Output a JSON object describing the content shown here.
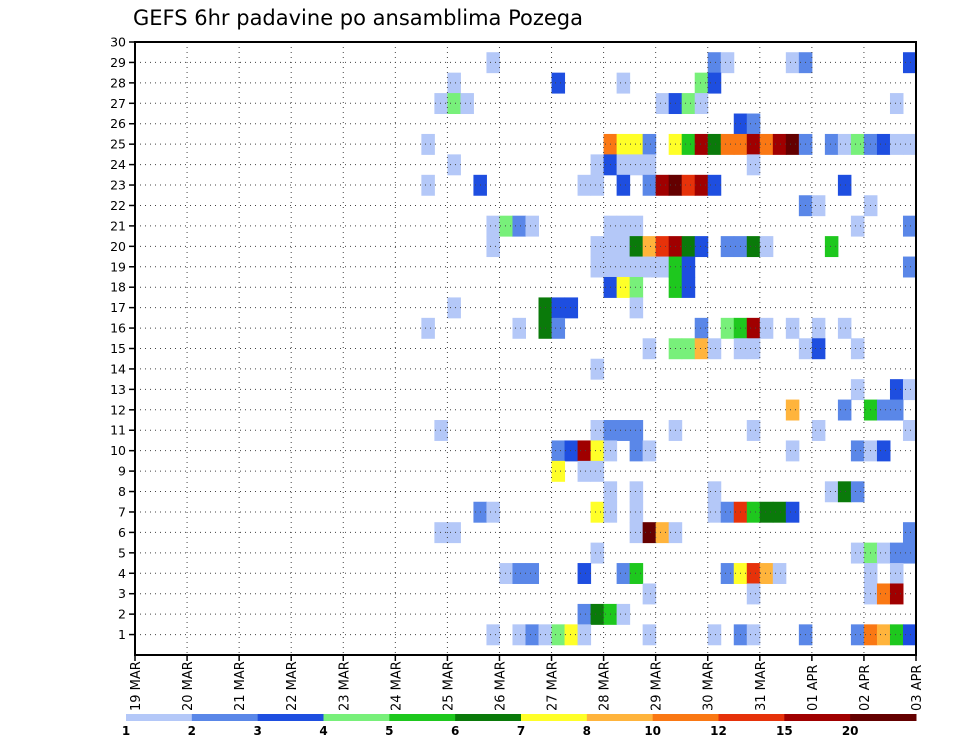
{
  "chart_data": {
    "type": "heatmap",
    "title": "GEFS 6hr padavine po ansamblima Pozega",
    "xlabel": "",
    "ylabel": "",
    "x_tick_labels": [
      "19 MAR",
      "20 MAR",
      "21 MAR",
      "22 MAR",
      "23 MAR",
      "24 MAR",
      "25 MAR",
      "26 MAR",
      "27 MAR",
      "28 MAR",
      "29 MAR",
      "30 MAR",
      "31 MAR",
      "01 APR",
      "02 APR",
      "03 APR"
    ],
    "x_range_steps": [
      0,
      60
    ],
    "y_tick_labels": [
      "1",
      "2",
      "3",
      "4",
      "5",
      "6",
      "7",
      "8",
      "9",
      "10",
      "11",
      "12",
      "13",
      "14",
      "15",
      "16",
      "17",
      "18",
      "19",
      "20",
      "21",
      "22",
      "23",
      "24",
      "25",
      "26",
      "27",
      "28",
      "29",
      "30"
    ],
    "ylim": [
      0,
      30
    ],
    "grid": true,
    "colorbar": {
      "levels": [
        "1",
        "2",
        "3",
        "4",
        "5",
        "6",
        "7",
        "8",
        "10",
        "12",
        "15",
        "20"
      ],
      "colors": [
        "#b4c8f8",
        "#5a87e8",
        "#1e4ee0",
        "#78f07a",
        "#1ec81e",
        "#0a7a0a",
        "#ffff28",
        "#ffb43c",
        "#fa7814",
        "#e6320a",
        "#a00000",
        "#640000"
      ]
    },
    "cells": [
      {
        "m": 29,
        "t": [
          [
            27,
            1
          ],
          [
            44,
            2
          ],
          [
            45,
            1
          ],
          [
            50,
            1
          ],
          [
            51,
            2
          ],
          [
            59,
            3
          ]
        ]
      },
      {
        "m": 28,
        "t": [
          [
            24,
            1
          ],
          [
            32,
            3
          ],
          [
            37,
            1
          ],
          [
            43,
            4
          ],
          [
            44,
            3
          ]
        ]
      },
      {
        "m": 27,
        "t": [
          [
            23,
            1
          ],
          [
            24,
            4
          ],
          [
            25,
            1
          ],
          [
            40,
            1
          ],
          [
            41,
            3
          ],
          [
            42,
            4
          ],
          [
            43,
            1
          ],
          [
            58,
            1
          ]
        ]
      },
      {
        "m": 26,
        "t": [
          [
            46,
            3
          ],
          [
            47,
            2
          ]
        ]
      },
      {
        "m": 25,
        "t": [
          [
            22,
            1
          ],
          [
            36,
            9
          ],
          [
            37,
            7
          ],
          [
            38,
            7
          ],
          [
            39,
            2
          ],
          [
            41,
            7
          ],
          [
            42,
            5
          ],
          [
            43,
            11
          ],
          [
            44,
            6
          ],
          [
            45,
            9
          ],
          [
            46,
            9
          ],
          [
            47,
            11
          ],
          [
            48,
            9
          ],
          [
            49,
            11
          ],
          [
            50,
            12
          ],
          [
            51,
            2
          ],
          [
            53,
            2
          ],
          [
            54,
            1
          ],
          [
            55,
            4
          ],
          [
            56,
            2
          ],
          [
            57,
            3
          ],
          [
            58,
            1
          ],
          [
            59,
            1
          ]
        ]
      },
      {
        "m": 24,
        "t": [
          [
            24,
            1
          ],
          [
            35,
            1
          ],
          [
            36,
            3
          ],
          [
            37,
            1
          ],
          [
            38,
            1
          ],
          [
            39,
            1
          ],
          [
            47,
            1
          ]
        ]
      },
      {
        "m": 23,
        "t": [
          [
            22,
            1
          ],
          [
            26,
            3
          ],
          [
            34,
            1
          ],
          [
            35,
            1
          ],
          [
            37,
            3
          ],
          [
            39,
            2
          ],
          [
            40,
            11
          ],
          [
            41,
            12
          ],
          [
            42,
            10
          ],
          [
            43,
            11
          ],
          [
            44,
            3
          ],
          [
            54,
            3
          ]
        ]
      },
      {
        "m": 22,
        "t": [
          [
            51,
            2
          ],
          [
            52,
            1
          ],
          [
            56,
            1
          ]
        ]
      },
      {
        "m": 21,
        "t": [
          [
            27,
            1
          ],
          [
            28,
            4
          ],
          [
            29,
            2
          ],
          [
            30,
            1
          ],
          [
            36,
            1
          ],
          [
            37,
            1
          ],
          [
            38,
            1
          ],
          [
            55,
            1
          ],
          [
            59,
            2
          ]
        ]
      },
      {
        "m": 20,
        "t": [
          [
            27,
            1
          ],
          [
            35,
            1
          ],
          [
            36,
            1
          ],
          [
            37,
            1
          ],
          [
            38,
            6
          ],
          [
            39,
            8
          ],
          [
            40,
            10
          ],
          [
            41,
            11
          ],
          [
            42,
            6
          ],
          [
            43,
            3
          ],
          [
            45,
            2
          ],
          [
            46,
            2
          ],
          [
            47,
            6
          ],
          [
            48,
            1
          ],
          [
            53,
            5
          ]
        ]
      },
      {
        "m": 19,
        "t": [
          [
            35,
            1
          ],
          [
            36,
            1
          ],
          [
            37,
            1
          ],
          [
            38,
            1
          ],
          [
            39,
            1
          ],
          [
            40,
            1
          ],
          [
            41,
            5
          ],
          [
            42,
            3
          ],
          [
            59,
            2
          ]
        ]
      },
      {
        "m": 18,
        "t": [
          [
            36,
            3
          ],
          [
            37,
            7
          ],
          [
            38,
            4
          ],
          [
            41,
            5
          ],
          [
            42,
            3
          ]
        ]
      },
      {
        "m": 17,
        "t": [
          [
            24,
            1
          ],
          [
            31,
            6
          ],
          [
            32,
            3
          ],
          [
            33,
            3
          ],
          [
            38,
            1
          ]
        ]
      },
      {
        "m": 16,
        "t": [
          [
            22,
            1
          ],
          [
            29,
            1
          ],
          [
            31,
            6
          ],
          [
            32,
            2
          ],
          [
            43,
            2
          ],
          [
            45,
            4
          ],
          [
            46,
            5
          ],
          [
            47,
            11
          ],
          [
            48,
            1
          ],
          [
            50,
            1
          ],
          [
            52,
            1
          ],
          [
            54,
            1
          ]
        ]
      },
      {
        "m": 15,
        "t": [
          [
            39,
            1
          ],
          [
            41,
            4
          ],
          [
            42,
            4
          ],
          [
            43,
            8
          ],
          [
            44,
            1
          ],
          [
            46,
            1
          ],
          [
            47,
            1
          ],
          [
            51,
            1
          ],
          [
            52,
            3
          ],
          [
            55,
            1
          ]
        ]
      },
      {
        "m": 14,
        "t": [
          [
            35,
            1
          ]
        ]
      },
      {
        "m": 13,
        "t": [
          [
            55,
            1
          ],
          [
            58,
            3
          ],
          [
            59,
            1
          ]
        ]
      },
      {
        "m": 12,
        "t": [
          [
            50,
            8
          ],
          [
            54,
            2
          ],
          [
            56,
            5
          ],
          [
            57,
            2
          ],
          [
            58,
            2
          ]
        ]
      },
      {
        "m": 11,
        "t": [
          [
            23,
            1
          ],
          [
            35,
            1
          ],
          [
            36,
            2
          ],
          [
            37,
            2
          ],
          [
            38,
            2
          ],
          [
            41,
            1
          ],
          [
            47,
            1
          ],
          [
            52,
            1
          ],
          [
            59,
            1
          ]
        ]
      },
      {
        "m": 10,
        "t": [
          [
            32,
            2
          ],
          [
            33,
            3
          ],
          [
            34,
            11
          ],
          [
            35,
            7
          ],
          [
            36,
            1
          ],
          [
            38,
            2
          ],
          [
            39,
            1
          ],
          [
            50,
            1
          ],
          [
            55,
            2
          ],
          [
            56,
            1
          ],
          [
            57,
            3
          ]
        ]
      },
      {
        "m": 9,
        "t": [
          [
            32,
            7
          ],
          [
            34,
            1
          ],
          [
            35,
            1
          ]
        ]
      },
      {
        "m": 8,
        "t": [
          [
            36,
            1
          ],
          [
            38,
            1
          ],
          [
            44,
            1
          ],
          [
            53,
            1
          ],
          [
            54,
            6
          ],
          [
            55,
            2
          ]
        ]
      },
      {
        "m": 7,
        "t": [
          [
            26,
            2
          ],
          [
            27,
            1
          ],
          [
            35,
            7
          ],
          [
            36,
            1
          ],
          [
            38,
            1
          ],
          [
            44,
            1
          ],
          [
            45,
            2
          ],
          [
            46,
            10
          ],
          [
            47,
            5
          ],
          [
            48,
            6
          ],
          [
            49,
            6
          ],
          [
            50,
            3
          ]
        ]
      },
      {
        "m": 6,
        "t": [
          [
            23,
            1
          ],
          [
            24,
            1
          ],
          [
            38,
            1
          ],
          [
            39,
            12
          ],
          [
            40,
            8
          ],
          [
            41,
            1
          ],
          [
            59,
            2
          ]
        ]
      },
      {
        "m": 5,
        "t": [
          [
            35,
            1
          ],
          [
            55,
            1
          ],
          [
            56,
            4
          ],
          [
            57,
            1
          ],
          [
            58,
            2
          ],
          [
            59,
            2
          ]
        ]
      },
      {
        "m": 4,
        "t": [
          [
            28,
            1
          ],
          [
            29,
            2
          ],
          [
            30,
            2
          ],
          [
            34,
            3
          ],
          [
            37,
            2
          ],
          [
            38,
            5
          ],
          [
            45,
            2
          ],
          [
            46,
            7
          ],
          [
            47,
            10
          ],
          [
            48,
            8
          ],
          [
            49,
            1
          ],
          [
            56,
            1
          ],
          [
            58,
            1
          ]
        ]
      },
      {
        "m": 3,
        "t": [
          [
            39,
            1
          ],
          [
            47,
            1
          ],
          [
            56,
            1
          ],
          [
            57,
            9
          ],
          [
            58,
            11
          ]
        ]
      },
      {
        "m": 2,
        "t": [
          [
            34,
            2
          ],
          [
            35,
            6
          ],
          [
            36,
            5
          ],
          [
            37,
            1
          ]
        ]
      },
      {
        "m": 1,
        "t": [
          [
            27,
            1
          ],
          [
            29,
            1
          ],
          [
            30,
            2
          ],
          [
            31,
            1
          ],
          [
            32,
            4
          ],
          [
            33,
            7
          ],
          [
            34,
            1
          ],
          [
            39,
            1
          ],
          [
            44,
            1
          ],
          [
            46,
            2
          ],
          [
            47,
            1
          ],
          [
            51,
            2
          ],
          [
            55,
            2
          ],
          [
            56,
            9
          ],
          [
            57,
            8
          ],
          [
            58,
            5
          ],
          [
            59,
            3
          ]
        ]
      }
    ]
  }
}
